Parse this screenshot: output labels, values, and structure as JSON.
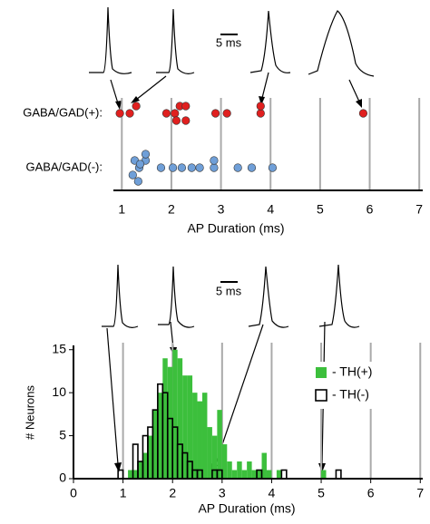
{
  "chart_data": [
    {
      "type": "strip",
      "annotation": "5 ms",
      "xlabel": "AP Duration (ms)",
      "categories": [
        "GABA/GAD(+):",
        "GABA/GAD(-):"
      ],
      "colors": [
        "#e0201f",
        "#6f9fd8"
      ],
      "values": [
        [
          0.96,
          1.16,
          1.29,
          1.9,
          2.07,
          2.17,
          2.29,
          2.29,
          2.1,
          2.89,
          3.12,
          3.8,
          3.8,
          5.87
        ],
        [
          1.35,
          1.26,
          1.48,
          1.22,
          1.33,
          1.48,
          1.37,
          1.79,
          2.03,
          2.21,
          2.41,
          2.57,
          2.86,
          2.86,
          3.34,
          3.62,
          4.04
        ]
      ],
      "xlim": [
        0.83,
        7.07
      ],
      "xticks": [
        1,
        2,
        3,
        4,
        5,
        6,
        7
      ],
      "grid": true
    },
    {
      "type": "histogram",
      "annotation": "5 ms",
      "xlabel": "AP Duration (ms)",
      "ylabel": "# Neurons",
      "bins": [
        0.9,
        1.0,
        1.1,
        1.2,
        1.3,
        1.4,
        1.5,
        1.6,
        1.7,
        1.8,
        1.9,
        2.0,
        2.1,
        2.2,
        2.3,
        2.4,
        2.5,
        2.6,
        2.7,
        2.8,
        2.9,
        3.0,
        3.1,
        3.2,
        3.3,
        3.4,
        3.5,
        3.6,
        3.7,
        3.8,
        3.9,
        4.0,
        4.1,
        4.2,
        4.3,
        4.4,
        4.5,
        4.6,
        4.7,
        4.8,
        4.9,
        5.0,
        5.1,
        5.2,
        5.3,
        5.4,
        5.5
      ],
      "series": [
        {
          "name": "- TH(+)",
          "color": "#3cbf3c",
          "fill": true,
          "values": [
            0,
            0,
            1,
            1,
            2,
            3,
            5,
            8,
            10,
            14,
            13,
            15,
            14,
            12,
            12,
            10,
            9,
            10,
            6,
            5,
            8,
            4,
            2,
            1,
            2,
            1,
            2,
            1,
            1,
            3,
            1,
            0,
            1,
            0,
            0,
            0,
            0,
            0,
            0,
            0,
            0,
            1,
            0,
            0,
            0,
            0
          ]
        },
        {
          "name": "- TH(-)",
          "color": "#000000",
          "fill": false,
          "values": [
            1,
            0,
            0,
            4,
            2,
            5,
            6,
            8,
            11,
            10,
            7,
            6,
            4,
            3,
            2,
            1,
            1,
            0,
            0,
            1,
            1,
            0,
            0,
            0,
            0,
            0,
            0,
            0,
            1,
            0,
            0,
            0,
            0,
            1,
            0,
            0,
            0,
            0,
            0,
            0,
            0,
            0,
            0,
            0,
            1,
            0
          ]
        }
      ],
      "xlim": [
        0,
        7.05
      ],
      "xticks": [
        0,
        1,
        2,
        3,
        4,
        5,
        6,
        7
      ],
      "ylim": [
        0,
        15.5
      ],
      "yticks": [
        0,
        5,
        10,
        15
      ],
      "grid": true,
      "legend": "upper right"
    }
  ]
}
